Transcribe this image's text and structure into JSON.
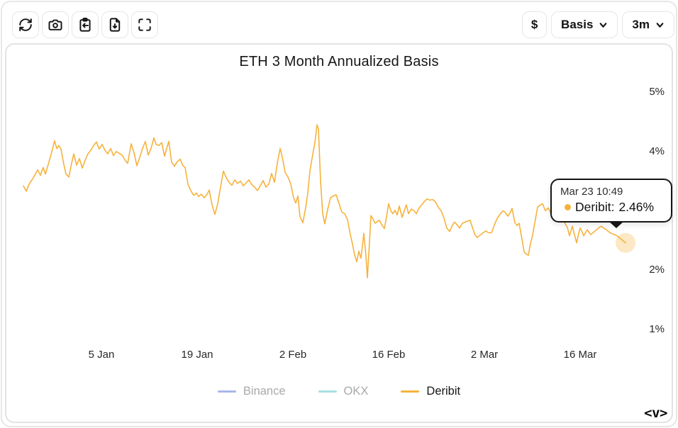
{
  "toolbar": {
    "left_icons": [
      "refresh",
      "camera",
      "clipboard-import",
      "file-download",
      "fullscreen"
    ],
    "currency_label": "$",
    "metric_label": "Basis",
    "timeframe_label": "3m"
  },
  "chart": {
    "title": "ETH 3 Month Annualized Basis"
  },
  "tooltip": {
    "timestamp": "Mar 23 10:49",
    "series_label": "Deribit:",
    "value": "2.46%"
  },
  "legend": [
    {
      "name": "Binance",
      "color": "#A9B7E9",
      "active": false
    },
    {
      "name": "OKX",
      "color": "#A8E0E3",
      "active": false
    },
    {
      "name": "Deribit",
      "color": "#F6B23D",
      "active": true
    }
  ],
  "watermark": "<v>",
  "colors": {
    "line": "#F6B23D",
    "halo": "rgba(246,178,61,0.30)"
  },
  "chart_data": {
    "type": "line",
    "title": "ETH 3 Month Annualized Basis",
    "y_unit": "%",
    "ylim": [
      1,
      5
    ],
    "grid": false,
    "legend_position": "bottom",
    "y_ticks": [
      "5%",
      "4%",
      "3%",
      "2%",
      "1%"
    ],
    "x_ticks": [
      "5 Jan",
      "19 Jan",
      "2 Feb",
      "16 Feb",
      "2 Mar",
      "16 Mar"
    ],
    "series": [
      {
        "name": "Binance",
        "color": "#A9B7E9",
        "visible": false,
        "points": []
      },
      {
        "name": "OKX",
        "color": "#A8E0E3",
        "visible": false,
        "points": []
      },
      {
        "name": "Deribit",
        "color": "#F6B23D",
        "visible": true,
        "points": [
          [
            33,
            3.42
          ],
          [
            37,
            3.33
          ],
          [
            41,
            3.45
          ],
          [
            45,
            3.52
          ],
          [
            49,
            3.6
          ],
          [
            53,
            3.69
          ],
          [
            57,
            3.6
          ],
          [
            61,
            3.73
          ],
          [
            64,
            3.62
          ],
          [
            68,
            3.78
          ],
          [
            72,
            3.95
          ],
          [
            77,
            4.18
          ],
          [
            80,
            4.05
          ],
          [
            83,
            4.1
          ],
          [
            86,
            4.04
          ],
          [
            90,
            3.78
          ],
          [
            93,
            3.62
          ],
          [
            97,
            3.57
          ],
          [
            101,
            3.8
          ],
          [
            104,
            3.96
          ],
          [
            108,
            3.77
          ],
          [
            112,
            3.88
          ],
          [
            116,
            3.72
          ],
          [
            120,
            3.85
          ],
          [
            124,
            3.96
          ],
          [
            128,
            4.02
          ],
          [
            132,
            4.1
          ],
          [
            136,
            4.16
          ],
          [
            140,
            4.04
          ],
          [
            144,
            4.12
          ],
          [
            148,
            4.02
          ],
          [
            152,
            3.96
          ],
          [
            156,
            4.05
          ],
          [
            160,
            3.93
          ],
          [
            164,
            4.0
          ],
          [
            168,
            3.97
          ],
          [
            172,
            3.94
          ],
          [
            176,
            3.86
          ],
          [
            180,
            3.8
          ],
          [
            185,
            4.13
          ],
          [
            189,
            3.98
          ],
          [
            193,
            3.76
          ],
          [
            197,
            3.9
          ],
          [
            201,
            4.05
          ],
          [
            205,
            4.17
          ],
          [
            209,
            3.94
          ],
          [
            213,
            4.05
          ],
          [
            217,
            4.23
          ],
          [
            220,
            4.12
          ],
          [
            224,
            4.1
          ],
          [
            228,
            4.15
          ],
          [
            232,
            3.92
          ],
          [
            235,
            4.05
          ],
          [
            238,
            4.17
          ],
          [
            242,
            3.82
          ],
          [
            246,
            3.75
          ],
          [
            250,
            3.83
          ],
          [
            254,
            3.87
          ],
          [
            258,
            3.76
          ],
          [
            261,
            3.73
          ],
          [
            265,
            3.45
          ],
          [
            269,
            3.34
          ],
          [
            273,
            3.26
          ],
          [
            277,
            3.3
          ],
          [
            280,
            3.24
          ],
          [
            284,
            3.28
          ],
          [
            288,
            3.22
          ],
          [
            292,
            3.28
          ],
          [
            295,
            3.35
          ],
          [
            299,
            3.1
          ],
          [
            303,
            2.94
          ],
          [
            307,
            3.12
          ],
          [
            311,
            3.4
          ],
          [
            315,
            3.67
          ],
          [
            319,
            3.56
          ],
          [
            323,
            3.48
          ],
          [
            327,
            3.43
          ],
          [
            331,
            3.52
          ],
          [
            335,
            3.46
          ],
          [
            339,
            3.5
          ],
          [
            343,
            3.42
          ],
          [
            347,
            3.47
          ],
          [
            351,
            3.52
          ],
          [
            355,
            3.44
          ],
          [
            359,
            3.4
          ],
          [
            363,
            3.34
          ],
          [
            367,
            3.42
          ],
          [
            371,
            3.51
          ],
          [
            375,
            3.4
          ],
          [
            379,
            3.45
          ],
          [
            383,
            3.63
          ],
          [
            387,
            3.48
          ],
          [
            391,
            3.8
          ],
          [
            395,
            4.05
          ],
          [
            398,
            3.91
          ],
          [
            402,
            3.65
          ],
          [
            406,
            3.57
          ],
          [
            410,
            3.45
          ],
          [
            414,
            3.22
          ],
          [
            417,
            3.13
          ],
          [
            420,
            3.25
          ],
          [
            423,
            2.9
          ],
          [
            427,
            2.8
          ],
          [
            431,
            3.05
          ],
          [
            434,
            3.3
          ],
          [
            437,
            3.67
          ],
          [
            441,
            3.95
          ],
          [
            444,
            4.15
          ],
          [
            447,
            4.45
          ],
          [
            449,
            4.38
          ],
          [
            452,
            3.5
          ],
          [
            455,
            2.95
          ],
          [
            458,
            2.78
          ],
          [
            462,
            3.02
          ],
          [
            466,
            3.22
          ],
          [
            470,
            3.25
          ],
          [
            474,
            3.27
          ],
          [
            478,
            3.12
          ],
          [
            482,
            2.98
          ],
          [
            486,
            2.95
          ],
          [
            490,
            2.85
          ],
          [
            494,
            2.6
          ],
          [
            497,
            2.44
          ],
          [
            500,
            2.26
          ],
          [
            503,
            2.14
          ],
          [
            506,
            2.32
          ],
          [
            509,
            2.2
          ],
          [
            513,
            2.62
          ],
          [
            516,
            2.24
          ],
          [
            518,
            1.87
          ],
          [
            521,
            2.48
          ],
          [
            523,
            2.92
          ],
          [
            526,
            2.86
          ],
          [
            529,
            2.79
          ],
          [
            532,
            2.82
          ],
          [
            535,
            2.84
          ],
          [
            538,
            2.77
          ],
          [
            542,
            2.7
          ],
          [
            545,
            2.9
          ],
          [
            548,
            3.12
          ],
          [
            551,
            3.0
          ],
          [
            554,
            2.95
          ],
          [
            557,
            3.01
          ],
          [
            560,
            2.93
          ],
          [
            563,
            3.08
          ],
          [
            567,
            2.89
          ],
          [
            570,
            3.0
          ],
          [
            573,
            3.1
          ],
          [
            576,
            2.95
          ],
          [
            580,
            3.03
          ],
          [
            584,
            3.0
          ],
          [
            587,
            2.95
          ],
          [
            591,
            3.05
          ],
          [
            594,
            3.09
          ],
          [
            598,
            3.15
          ],
          [
            602,
            3.2
          ],
          [
            606,
            3.18
          ],
          [
            610,
            3.19
          ],
          [
            614,
            3.15
          ],
          [
            618,
            3.06
          ],
          [
            622,
            3.0
          ],
          [
            626,
            2.88
          ],
          [
            630,
            2.71
          ],
          [
            634,
            2.65
          ],
          [
            638,
            2.76
          ],
          [
            641,
            2.81
          ],
          [
            644,
            2.77
          ],
          [
            648,
            2.71
          ],
          [
            652,
            2.79
          ],
          [
            656,
            2.81
          ],
          [
            660,
            2.83
          ],
          [
            663,
            2.84
          ],
          [
            666,
            2.72
          ],
          [
            670,
            2.59
          ],
          [
            673,
            2.55
          ],
          [
            677,
            2.59
          ],
          [
            681,
            2.63
          ],
          [
            685,
            2.66
          ],
          [
            689,
            2.63
          ],
          [
            693,
            2.63
          ],
          [
            697,
            2.76
          ],
          [
            701,
            2.87
          ],
          [
            705,
            2.94
          ],
          [
            709,
            3.0
          ],
          [
            712,
            2.98
          ],
          [
            716,
            2.91
          ],
          [
            719,
            2.96
          ],
          [
            722,
            3.04
          ],
          [
            726,
            2.8
          ],
          [
            729,
            2.75
          ],
          [
            732,
            2.79
          ],
          [
            736,
            2.52
          ],
          [
            739,
            2.31
          ],
          [
            742,
            2.27
          ],
          [
            745,
            2.25
          ],
          [
            748,
            2.45
          ],
          [
            751,
            2.59
          ],
          [
            755,
            2.86
          ],
          [
            758,
            3.06
          ],
          [
            762,
            3.1
          ],
          [
            765,
            3.12
          ],
          [
            769,
            3.0
          ],
          [
            773,
            3.05
          ],
          [
            777,
            2.95
          ],
          [
            781,
            3.0
          ],
          [
            785,
            2.92
          ],
          [
            789,
            2.96
          ],
          [
            793,
            2.88
          ],
          [
            797,
            2.78
          ],
          [
            800,
            2.72
          ],
          [
            803,
            2.58
          ],
          [
            807,
            2.74
          ],
          [
            810,
            2.6
          ],
          [
            813,
            2.46
          ],
          [
            816,
            2.62
          ],
          [
            818,
            2.71
          ],
          [
            821,
            2.64
          ],
          [
            823,
            2.58
          ],
          [
            826,
            2.64
          ],
          [
            828,
            2.68
          ],
          [
            831,
            2.63
          ],
          [
            833,
            2.6
          ],
          [
            836,
            2.63
          ],
          [
            839,
            2.66
          ],
          [
            842,
            2.69
          ],
          [
            845,
            2.72
          ],
          [
            848,
            2.74
          ],
          [
            851,
            2.71
          ],
          [
            854,
            2.69
          ],
          [
            858,
            2.65
          ],
          [
            862,
            2.62
          ],
          [
            866,
            2.6
          ],
          [
            870,
            2.58
          ],
          [
            874,
            2.54
          ],
          [
            878,
            2.5
          ],
          [
            882,
            2.46
          ]
        ]
      }
    ],
    "highlight": {
      "series": "Deribit",
      "time": "Mar 23 10:49",
      "value": 2.46,
      "x": 882
    }
  }
}
